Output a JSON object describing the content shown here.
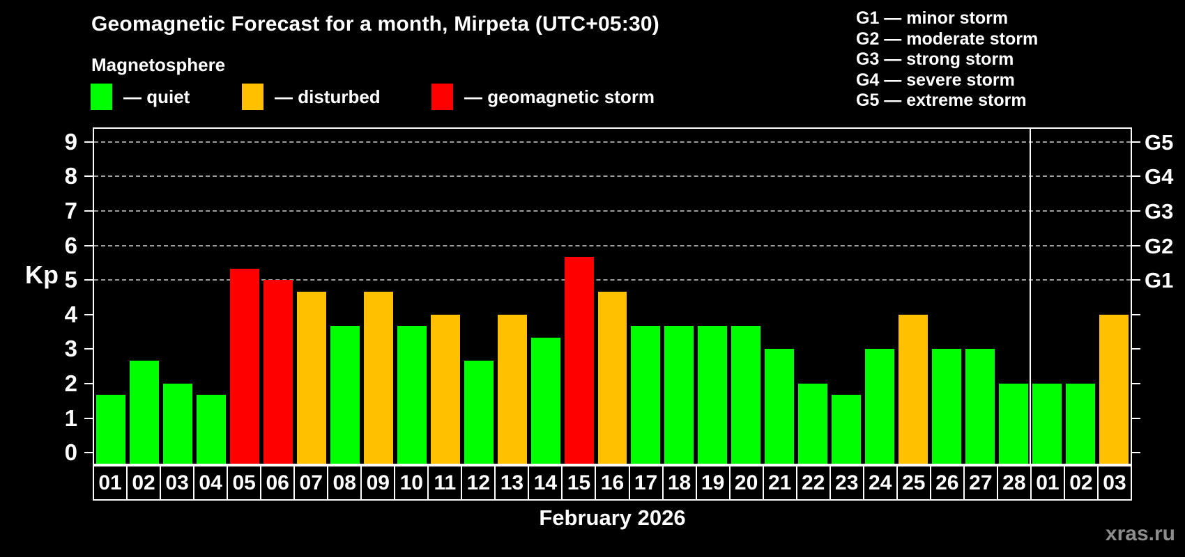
{
  "header": {
    "title": "Geomagnetic Forecast for a month, Mirpeta (UTC+05:30)",
    "subtitle": "Magnetosphere"
  },
  "legend": {
    "items": [
      {
        "name": "quiet",
        "label": "— quiet",
        "color": "#00ff00",
        "x": 130
      },
      {
        "name": "disturbed",
        "label": "— disturbed",
        "color": "#ffc000",
        "x": 347
      },
      {
        "name": "geomagnetic-storm",
        "label": "— geomagnetic storm",
        "color": "#ff0000",
        "x": 619
      }
    ]
  },
  "g_scale_legend": {
    "lines": [
      "G1 — minor storm",
      "G2 — moderate storm",
      "G3 — strong storm",
      "G4 — severe storm",
      "G5 — extreme storm"
    ]
  },
  "watermark": "xras.ru",
  "chart_data": {
    "type": "bar",
    "title": "Geomagnetic Forecast for a month, Mirpeta (UTC+05:30)",
    "xlabel": "February 2026",
    "ylabel": "Kp",
    "ylim": [
      0,
      9
    ],
    "yticks": [
      0,
      1,
      2,
      3,
      4,
      5,
      6,
      7,
      8,
      9
    ],
    "gridlines_at_kp": [
      5,
      6,
      7,
      8,
      9
    ],
    "grid_style": "dashed",
    "legend_position": "top",
    "right_axis_labels": [
      {
        "label": "G1",
        "kp": 5
      },
      {
        "label": "G2",
        "kp": 6
      },
      {
        "label": "G3",
        "kp": 7
      },
      {
        "label": "G4",
        "kp": 8
      },
      {
        "label": "G5",
        "kp": 9
      }
    ],
    "categories": [
      "01",
      "02",
      "03",
      "04",
      "05",
      "06",
      "07",
      "08",
      "09",
      "10",
      "11",
      "12",
      "13",
      "14",
      "15",
      "16",
      "17",
      "18",
      "19",
      "20",
      "21",
      "22",
      "23",
      "24",
      "25",
      "26",
      "27",
      "28",
      "01",
      "02",
      "03"
    ],
    "values": [
      1.67,
      2.67,
      2.0,
      1.67,
      5.33,
      5.0,
      4.67,
      3.67,
      4.67,
      3.67,
      4.0,
      2.67,
      4.0,
      3.33,
      5.67,
      4.67,
      3.67,
      3.67,
      3.67,
      3.67,
      3.0,
      2.0,
      1.67,
      3.0,
      4.0,
      3.0,
      3.0,
      2.0,
      2.0,
      2.0,
      4.0
    ],
    "month_separator_before_index": 28,
    "color_rules": {
      "storm_from_kp": 5,
      "disturbed_from_kp": 4,
      "quiet_color": "#00ff00",
      "disturbed_color": "#ffc000",
      "storm_color": "#ff0000"
    }
  }
}
